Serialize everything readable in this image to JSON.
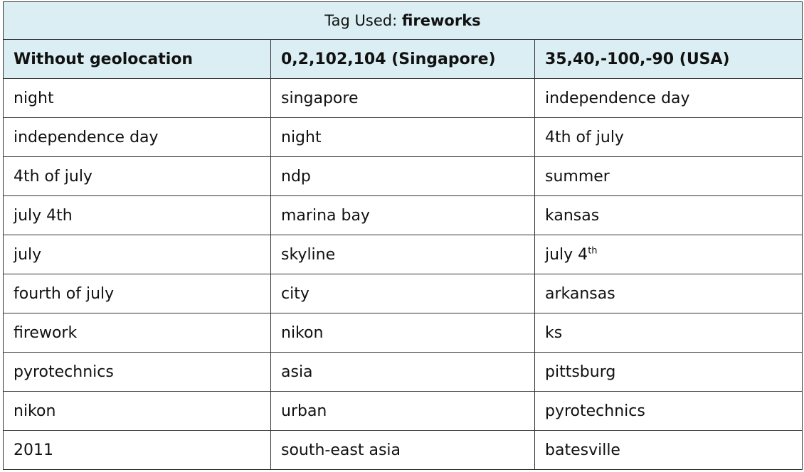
{
  "title": {
    "prefix": "Tag Used:",
    "tag": "fireworks"
  },
  "columns": [
    "Without geolocation",
    "0,2,102,104 (Singapore)",
    "35,40,-100,-90 (USA)"
  ],
  "rows": [
    [
      "night",
      "singapore",
      "independence day"
    ],
    [
      "independence day",
      "night",
      "4th of july"
    ],
    [
      "4th of july",
      "ndp",
      "summer"
    ],
    [
      "july 4th",
      "marina bay",
      "kansas"
    ],
    [
      "july",
      "skyline",
      "july 4"
    ],
    [
      "fourth of july",
      "city",
      "arkansas"
    ],
    [
      "firework",
      "nikon",
      "ks"
    ],
    [
      "pyrotechnics",
      "asia",
      "pittsburg"
    ],
    [
      "nikon",
      "urban",
      "pyrotechnics"
    ],
    [
      "2011",
      "south-east asia",
      "batesville"
    ]
  ],
  "superscripts": {
    "row4_col2": "th"
  }
}
